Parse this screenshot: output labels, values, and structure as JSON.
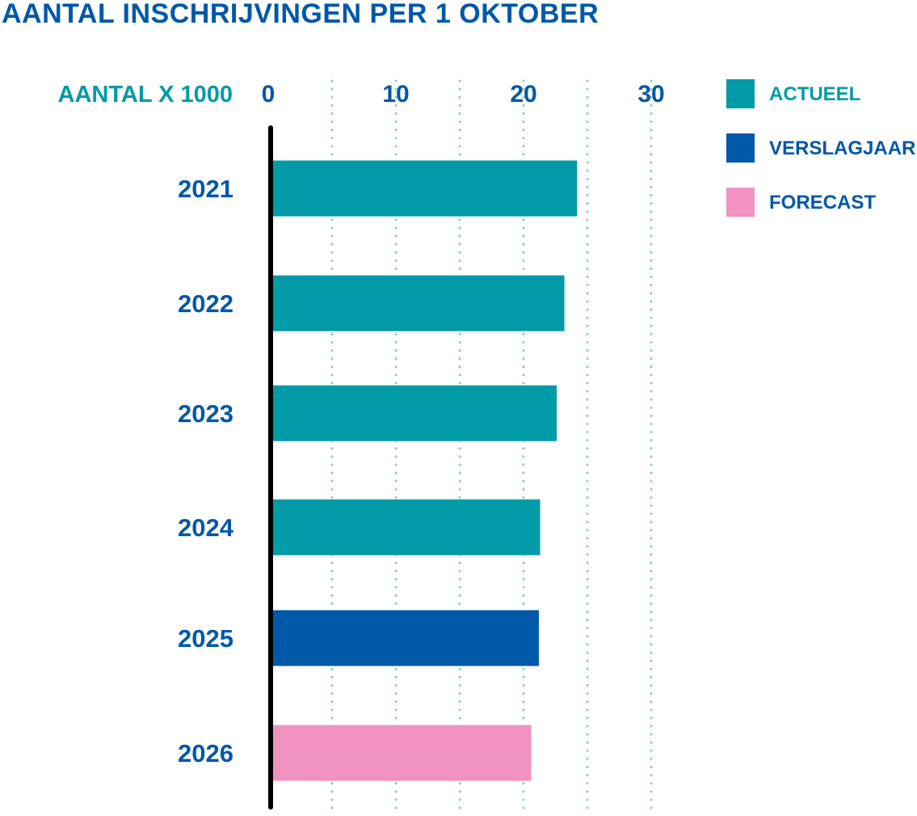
{
  "chart_data": {
    "type": "bar",
    "orientation": "horizontal",
    "title": "AANTAL INSCHRIJVINGEN PER 1 OKTOBER",
    "xlabel": "AANTAL X 1000",
    "xlim": [
      0,
      30
    ],
    "xticks": [
      "0",
      "10",
      "20",
      "30"
    ],
    "grid": true,
    "legend_position": "top-right",
    "categories": [
      "2021",
      "2022",
      "2023",
      "2024",
      "2025",
      "2026"
    ],
    "values": [
      24.2,
      23.2,
      22.6,
      21.3,
      21.2,
      20.6
    ],
    "bar_series": [
      "ACTUEEL",
      "ACTUEEL",
      "ACTUEEL",
      "ACTUEEL",
      "VERSLAGJAAR",
      "FORECAST"
    ],
    "legend": [
      {
        "label": "ACTUEEL",
        "color": "#009ba6"
      },
      {
        "label": "VERSLAGJAAR",
        "color": "#0058a8"
      },
      {
        "label": "FORECAST",
        "color": "#f093c0"
      }
    ],
    "colors": {
      "title": "#0058a8",
      "unit_label": "#009ba6",
      "text": "#0058a8",
      "grid": "#7fd3cc",
      "axis": "#000000"
    }
  }
}
